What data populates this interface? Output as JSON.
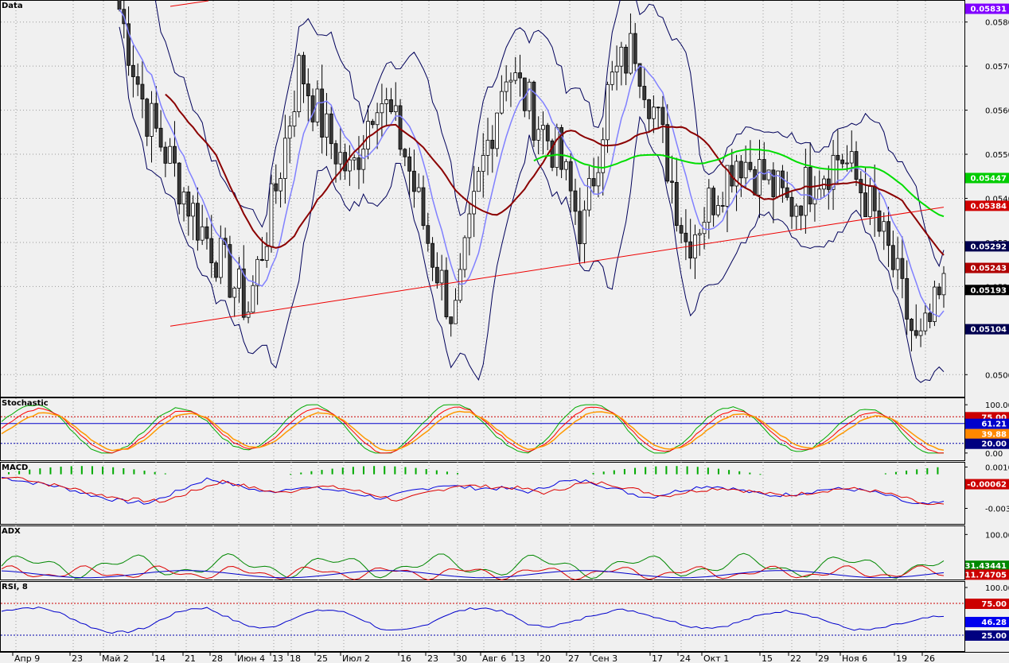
{
  "panes": {
    "main": {
      "label": "Data"
    },
    "stochastic": {
      "label": "Stochastic"
    },
    "macd": {
      "label": "MACD"
    },
    "adx": {
      "label": "ADX"
    },
    "rsi": {
      "label": "RSI, 8"
    }
  },
  "colors": {
    "background": "#f0f0f0",
    "candle_up": "#ffffff",
    "candle_down": "#3a3a3a",
    "sma_short": "#8080ff",
    "sma_mid": "#8b0000",
    "sma_long": "#00dd00",
    "bollinger": "#00005a",
    "trendline": "#ee0000"
  },
  "chart_data": [
    {
      "type": "candlestick",
      "pane": "main",
      "ylim": [
        0.0495,
        0.0585
      ],
      "y_ticks": [
        "0.05800",
        "0.05700",
        "0.05600",
        "0.05500",
        "0.05400",
        "0.05300",
        "0.05200",
        "0.05000"
      ],
      "x_labels": [
        "Апр 9",
        "23",
        "Май 2",
        "14",
        "21",
        "28",
        "Июн 4",
        "13",
        "18",
        "25",
        "Июл 2",
        "16",
        "23",
        "30",
        "Авг 6",
        "13",
        "20",
        "27",
        "Сен 3",
        "17",
        "24",
        "Окт 1",
        "15",
        "22",
        "29",
        "Ноя 6",
        "19",
        "26"
      ],
      "value_tags": [
        {
          "text": "0.05831",
          "color": "#8000ff"
        },
        {
          "text": "0.05447",
          "color": "#00cc00"
        },
        {
          "text": "0.05384",
          "color": "#d00000"
        },
        {
          "text": "0.05292",
          "color": "#000050"
        },
        {
          "text": "0.05243",
          "color": "#b00000"
        },
        {
          "text": "0.05193",
          "color": "#000000"
        },
        {
          "text": "0.05104",
          "color": "#000050"
        }
      ],
      "trendline_points": [
        [
          0.0511,
          0.0538
        ]
      ],
      "close_approx": [
        0.0583,
        0.056,
        0.0548,
        0.0535,
        0.0525,
        0.0515,
        0.054,
        0.057,
        0.0555,
        0.0545,
        0.0565,
        0.0552,
        0.053,
        0.0512,
        0.0545,
        0.057,
        0.056,
        0.055,
        0.0532,
        0.0565,
        0.0575,
        0.0555,
        0.053,
        0.054,
        0.055,
        0.0545,
        0.0538,
        0.0545,
        0.055,
        0.054,
        0.0525,
        0.0505,
        0.0519
      ]
    },
    {
      "type": "line",
      "pane": "stochastic",
      "ylim": [
        0,
        100
      ],
      "y_ticks": [
        "100.00",
        "0.00"
      ],
      "levels": [
        75,
        20
      ],
      "value_tags": [
        {
          "text": "75.00",
          "color": "#cc0000"
        },
        {
          "text": "61.21",
          "color": "#0000cc"
        },
        {
          "text": "39.88",
          "color": "#ff8800"
        },
        {
          "text": "20.00",
          "color": "#000080"
        }
      ]
    },
    {
      "type": "line",
      "pane": "macd",
      "ylim": [
        -0.0045,
        0.0015
      ],
      "y_ticks": [
        "0.00100",
        "-0.00300"
      ],
      "value_tags": [
        {
          "text": "-0.00062",
          "color": "#cc0000"
        }
      ]
    },
    {
      "type": "line",
      "pane": "adx",
      "ylim": [
        0,
        120
      ],
      "y_ticks": [
        "100.0000"
      ],
      "value_tags": [
        {
          "text": "31.43441",
          "color": "#008800"
        },
        {
          "text": "11.74705",
          "color": "#cc0000"
        }
      ]
    },
    {
      "type": "line",
      "pane": "rsi",
      "ylim": [
        0,
        110
      ],
      "y_ticks": [
        "100.00"
      ],
      "levels": [
        75,
        25
      ],
      "value_tags": [
        {
          "text": "75.00",
          "color": "#cc0000"
        },
        {
          "text": "46.28",
          "color": "#0000ee"
        },
        {
          "text": "25.00",
          "color": "#000080"
        }
      ]
    }
  ]
}
